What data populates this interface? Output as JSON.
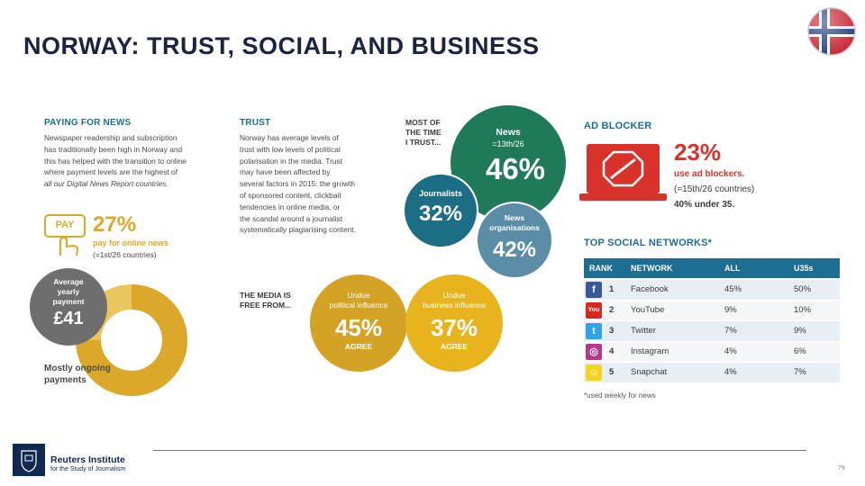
{
  "title": "NORWAY: TRUST, SOCIAL, AND BUSINESS",
  "flag_icon": "norway-flag-icon",
  "paying": {
    "heading": "PAYING FOR NEWS",
    "body_lines": [
      "Newspaper readership and subscription",
      "has traditionally been high in Norway and",
      "this has helped with the transition to online",
      "where payment levels are the highest of",
      "all our Digital News Report countries."
    ],
    "pay_icon_label": "PAY",
    "pct": "27%",
    "pct_label": "pay for online news",
    "rank": "(=1st/26 countries)",
    "avg_label_lines": [
      "Average",
      "yearly",
      "payment"
    ],
    "avg_value": "£41",
    "donut_label_lines": [
      "Mostly ongoing",
      "payments"
    ],
    "donut_share_mostly_ongoing": 0.75,
    "colors": {
      "gold": "#dca82a",
      "light_gold": "#e9c75c",
      "grey": "#6e6e6e"
    }
  },
  "trust": {
    "heading": "TRUST",
    "body_lines": [
      "Norway has average levels of",
      "trust with low levels of political",
      "polarisation in the media. Trust",
      "may have been affected by",
      "several factors in 2015: the growth",
      "of sponsored content, clickbait",
      "tendencies in online media, or",
      "the scandal around a journalist",
      "systematically plagiarising content."
    ],
    "most_time_lines": [
      "MOST OF",
      "THE TIME",
      "I TRUST..."
    ],
    "news_label": "News",
    "news_rank": "=13th/26",
    "news_pct": "46%",
    "journalists_label": "Journalists",
    "journalists_pct": "32%",
    "orgs_label_lines": [
      "News",
      "organisations"
    ],
    "orgs_pct": "42%",
    "colors": {
      "green": "#1f7a5a",
      "teal": "#1c6e85",
      "slate": "#5b8ea6"
    }
  },
  "media_free": {
    "label_lines": [
      "THE MEDIA IS",
      "FREE FROM..."
    ],
    "political_label_lines": [
      "Undue",
      "political influence"
    ],
    "political_pct": "45%",
    "business_label_lines": [
      "Undue",
      "business influence"
    ],
    "business_pct": "37%",
    "agree": "AGREE",
    "colors": {
      "gold": "#d4a326",
      "bright": "#e8b41e"
    }
  },
  "ad_blocker": {
    "heading": "AD BLOCKER",
    "pct": "23%",
    "label": "use ad blockers.",
    "rank": "(=15th/26 countries)",
    "under35": "40% under 35.",
    "icon": "ad-blocker-laptop-icon",
    "color": "#d9322b"
  },
  "social": {
    "heading": "TOP SOCIAL NETWORKS*",
    "columns": [
      "RANK",
      "NETWORK",
      "ALL",
      "U35s"
    ],
    "rows": [
      {
        "icon": "facebook-icon",
        "glyph": "f",
        "color": "#3b5998",
        "rank": "1",
        "network": "Facebook",
        "all": "45%",
        "u35": "50%"
      },
      {
        "icon": "youtube-icon",
        "glyph": "You",
        "color": "#d8281e",
        "rank": "2",
        "network": "YouTube",
        "all": "9%",
        "u35": "10%"
      },
      {
        "icon": "twitter-icon",
        "glyph": "t",
        "color": "#2fa3e6",
        "rank": "3",
        "network": "Twitter",
        "all": "7%",
        "u35": "9%"
      },
      {
        "icon": "instagram-icon",
        "glyph": "◎",
        "color": "#b7368c",
        "rank": "4",
        "network": "Instagram",
        "all": "4%",
        "u35": "6%"
      },
      {
        "icon": "snapchat-icon",
        "glyph": "☺",
        "color": "#f2d51c",
        "rank": "5",
        "network": "Snapchat",
        "all": "4%",
        "u35": "7%"
      }
    ],
    "footnote": "*used weekly for news"
  },
  "footer": {
    "org_name": "Reuters Institute",
    "org_sub": "for the Study of Journalism",
    "logo_icon": "oxford-crest-icon",
    "page_number": "79"
  }
}
